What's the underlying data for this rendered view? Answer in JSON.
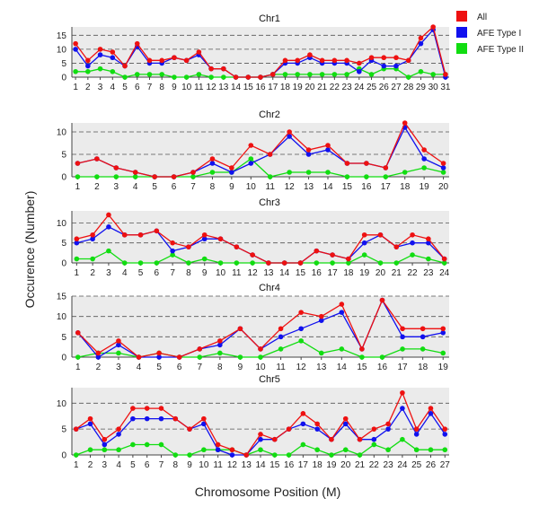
{
  "figure": {
    "ylabel": "Occurence (Number)",
    "xlabel": "Chromosome Position (M)"
  },
  "legend": [
    {
      "name": "All",
      "color": "#ee1111"
    },
    {
      "name": "AFE Type I",
      "color": "#1111ee"
    },
    {
      "name": "AFE Type II",
      "color": "#11dd11"
    }
  ],
  "chart_data": [
    {
      "type": "line",
      "title": "Chr1",
      "ylim": [
        0,
        18
      ],
      "yticks": [
        0,
        5,
        10,
        15
      ],
      "x": [
        1,
        2,
        3,
        4,
        5,
        6,
        7,
        8,
        9,
        10,
        11,
        12,
        13,
        14,
        15,
        16,
        17,
        18,
        19,
        20,
        21,
        22,
        23,
        24,
        25,
        26,
        27,
        28,
        29,
        30,
        31
      ],
      "series": [
        {
          "name": "All",
          "color": "#ee1111",
          "values": [
            12,
            6,
            10,
            9,
            4,
            12,
            6,
            6,
            7,
            6,
            9,
            3,
            3,
            0,
            0,
            0,
            1,
            6,
            6,
            8,
            6,
            6,
            6,
            5,
            7,
            7,
            7,
            6,
            14,
            18,
            1
          ]
        },
        {
          "name": "AFE Type I",
          "color": "#1111ee",
          "values": [
            10,
            4,
            8,
            7,
            4,
            11,
            5,
            5,
            7,
            6,
            8,
            3,
            3,
            0,
            0,
            0,
            1,
            5,
            5,
            7,
            5,
            5,
            5,
            2,
            6,
            4,
            4,
            6,
            12,
            17,
            0
          ]
        },
        {
          "name": "AFE Type II",
          "color": "#11dd11",
          "values": [
            2,
            2,
            3,
            2,
            0,
            1,
            1,
            1,
            0,
            0,
            1,
            0,
            0,
            0,
            0,
            0,
            1,
            1,
            1,
            1,
            1,
            1,
            1,
            3,
            1,
            3,
            3,
            0,
            2,
            1,
            1
          ]
        }
      ]
    },
    {
      "type": "line",
      "title": "Chr2",
      "ylim": [
        0,
        12
      ],
      "yticks": [
        0,
        5,
        10
      ],
      "x": [
        1,
        2,
        3,
        4,
        5,
        6,
        7,
        8,
        9,
        10,
        11,
        12,
        13,
        14,
        15,
        16,
        17,
        18,
        19,
        20
      ],
      "series": [
        {
          "name": "All",
          "color": "#ee1111",
          "values": [
            3,
            4,
            2,
            1,
            0,
            0,
            1,
            4,
            2,
            7,
            5,
            10,
            6,
            7,
            3,
            3,
            2,
            12,
            6,
            3
          ]
        },
        {
          "name": "AFE Type I",
          "color": "#1111ee",
          "values": [
            3,
            4,
            2,
            1,
            0,
            0,
            1,
            3,
            1,
            3,
            5,
            9,
            5,
            6,
            3,
            3,
            2,
            11,
            4,
            2
          ]
        },
        {
          "name": "AFE Type II",
          "color": "#11dd11",
          "values": [
            0,
            0,
            0,
            0,
            0,
            0,
            0,
            1,
            1,
            4,
            0,
            1,
            1,
            1,
            0,
            0,
            0,
            1,
            2,
            1
          ]
        }
      ]
    },
    {
      "type": "line",
      "title": "Chr3",
      "ylim": [
        0,
        13
      ],
      "yticks": [
        0,
        5,
        10
      ],
      "x": [
        1,
        2,
        3,
        4,
        5,
        6,
        7,
        8,
        9,
        10,
        11,
        12,
        13,
        14,
        15,
        16,
        17,
        18,
        19,
        20,
        21,
        22,
        23,
        24
      ],
      "series": [
        {
          "name": "All",
          "color": "#ee1111",
          "values": [
            6,
            7,
            12,
            7,
            7,
            8,
            5,
            4,
            7,
            6,
            4,
            2,
            0,
            0,
            0,
            3,
            2,
            1,
            7,
            7,
            4,
            7,
            6,
            1
          ]
        },
        {
          "name": "AFE Type I",
          "color": "#1111ee",
          "values": [
            5,
            6,
            9,
            7,
            7,
            8,
            3,
            4,
            6,
            6,
            4,
            2,
            0,
            0,
            0,
            3,
            2,
            1,
            5,
            7,
            4,
            5,
            5,
            1
          ]
        },
        {
          "name": "AFE Type II",
          "color": "#11dd11",
          "values": [
            1,
            1,
            3,
            0,
            0,
            0,
            2,
            0,
            1,
            0,
            0,
            0,
            0,
            0,
            0,
            0,
            0,
            0,
            2,
            0,
            0,
            2,
            1,
            0
          ]
        }
      ]
    },
    {
      "type": "line",
      "title": "Chr4",
      "ylim": [
        0,
        15
      ],
      "yticks": [
        0,
        5,
        10,
        15
      ],
      "x": [
        1,
        2,
        3,
        4,
        5,
        6,
        7,
        8,
        9,
        10,
        11,
        12,
        13,
        14,
        15,
        16,
        17,
        18,
        19
      ],
      "series": [
        {
          "name": "All",
          "color": "#ee1111",
          "values": [
            6,
            1,
            4,
            0,
            1,
            0,
            2,
            4,
            7,
            2,
            7,
            11,
            10,
            13,
            2,
            14,
            7,
            7,
            7
          ]
        },
        {
          "name": "AFE Type I",
          "color": "#1111ee",
          "values": [
            6,
            0,
            3,
            0,
            0,
            0,
            2,
            3,
            7,
            2,
            5,
            7,
            9,
            11,
            2,
            14,
            5,
            5,
            6
          ]
        },
        {
          "name": "AFE Type II",
          "color": "#11dd11",
          "values": [
            0,
            1,
            1,
            0,
            1,
            0,
            0,
            1,
            0,
            0,
            2,
            4,
            1,
            2,
            0,
            0,
            2,
            2,
            1
          ]
        }
      ]
    },
    {
      "type": "line",
      "title": "Chr5",
      "ylim": [
        0,
        13
      ],
      "yticks": [
        0,
        5,
        10
      ],
      "x": [
        1,
        2,
        3,
        4,
        5,
        6,
        7,
        8,
        9,
        10,
        11,
        12,
        13,
        14,
        15,
        16,
        17,
        18,
        19,
        20,
        21,
        22,
        23,
        24,
        25,
        26,
        27
      ],
      "series": [
        {
          "name": "All",
          "color": "#ee1111",
          "values": [
            5,
            7,
            3,
            5,
            9,
            9,
            9,
            7,
            5,
            7,
            2,
            1,
            0,
            4,
            3,
            5,
            8,
            6,
            3,
            7,
            3,
            5,
            6,
            12,
            5,
            9,
            5
          ]
        },
        {
          "name": "AFE Type I",
          "color": "#1111ee",
          "values": [
            5,
            6,
            2,
            4,
            7,
            7,
            7,
            7,
            5,
            6,
            1,
            0,
            0,
            3,
            3,
            5,
            6,
            5,
            3,
            6,
            3,
            3,
            5,
            9,
            4,
            8,
            4
          ]
        },
        {
          "name": "AFE Type II",
          "color": "#11dd11",
          "values": [
            0,
            1,
            1,
            1,
            2,
            2,
            2,
            0,
            0,
            1,
            1,
            1,
            0,
            1,
            0,
            0,
            2,
            1,
            0,
            1,
            0,
            2,
            1,
            3,
            1,
            1,
            1
          ]
        }
      ]
    }
  ]
}
